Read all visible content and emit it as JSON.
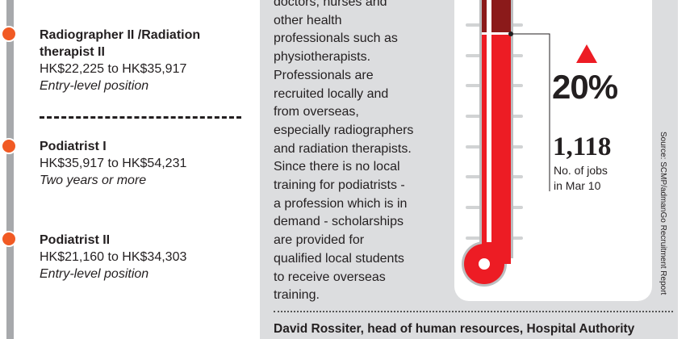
{
  "jobs": [
    {
      "title_line1": "Radiographer II /Radiation",
      "title_line2": "therapist II",
      "salary": "HK$22,225 to HK$35,917",
      "note": "Entry-level position"
    },
    {
      "title_line1": "Podiatrist I",
      "salary": "HK$35,917 to HK$54,231",
      "note": "Two years or more"
    },
    {
      "title_line1": "Podiatrist II",
      "salary": "HK$21,160 to HK$34,303",
      "note": "Entry-level position"
    }
  ],
  "body_lines": [
    "doctors, nurses and",
    "other health",
    "professionals such as",
    "physiotherapists.",
    "Professionals are",
    "recruited locally and",
    "from overseas,",
    "especially radiographers",
    "and radiation therapists.",
    "Since there is no local",
    "training for podiatrists -",
    "a profession which is in",
    "demand - scholarships",
    "are provided for",
    "qualified local students",
    "to receive overseas",
    "training."
  ],
  "quote_attribution": "David Rossiter, head of human resources, Hospital Authority",
  "thermometer": {
    "change": "20%",
    "direction": "up",
    "jobs": "1,118",
    "jobs_label_1": "No. of jobs",
    "jobs_label_2": "in Mar 10"
  },
  "source": "Source: SCMP/admanGo Recruitment Report",
  "colors": {
    "accent_orange": "#f15a24",
    "thermo_red": "#ed1c24",
    "thermo_dark": "#8b1a1a",
    "panel_grey": "#dcdddf"
  }
}
